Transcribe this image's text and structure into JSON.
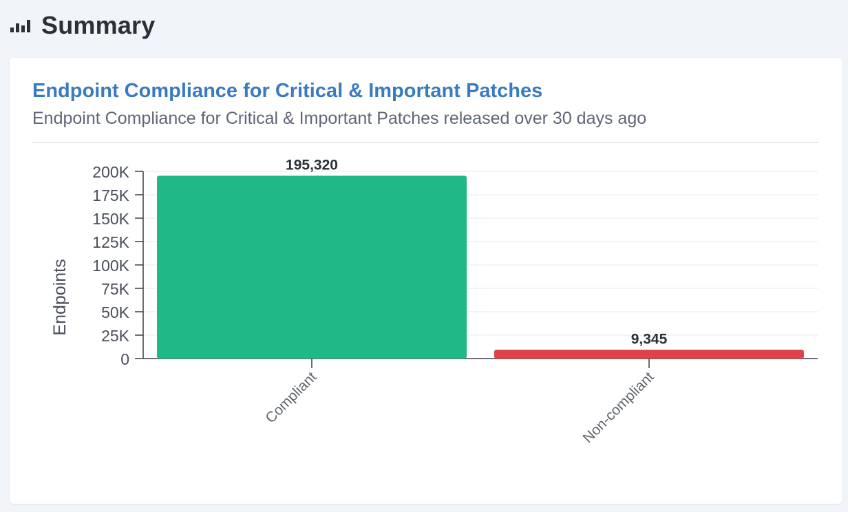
{
  "header": {
    "title": "Summary",
    "icon": "bar-chart-icon"
  },
  "card": {
    "title": "Endpoint Compliance for Critical & Important Patches",
    "subtitle": "Endpoint Compliance for Critical & Important Patches released over 30 days ago"
  },
  "colors": {
    "title": "#3a7bbf",
    "compliant": "#20b886",
    "non_compliant": "#e0414a"
  },
  "chart_data": {
    "type": "bar",
    "categories": [
      "Compliant",
      "Non-compliant"
    ],
    "values": [
      195320,
      9345
    ],
    "value_labels": [
      "195,320",
      "9,345"
    ],
    "bar_colors": [
      "#20b886",
      "#e0414a"
    ],
    "ylabel": "Endpoints",
    "xlabel": "",
    "ylim": [
      0,
      200000
    ],
    "yticks": [
      {
        "value": 0,
        "label": "0"
      },
      {
        "value": 25000,
        "label": "25K"
      },
      {
        "value": 50000,
        "label": "50K"
      },
      {
        "value": 75000,
        "label": "75K"
      },
      {
        "value": 100000,
        "label": "100K"
      },
      {
        "value": 125000,
        "label": "125K"
      },
      {
        "value": 150000,
        "label": "150K"
      },
      {
        "value": 175000,
        "label": "175K"
      },
      {
        "value": 200000,
        "label": "200K"
      }
    ],
    "grid": true,
    "legend": "none"
  }
}
